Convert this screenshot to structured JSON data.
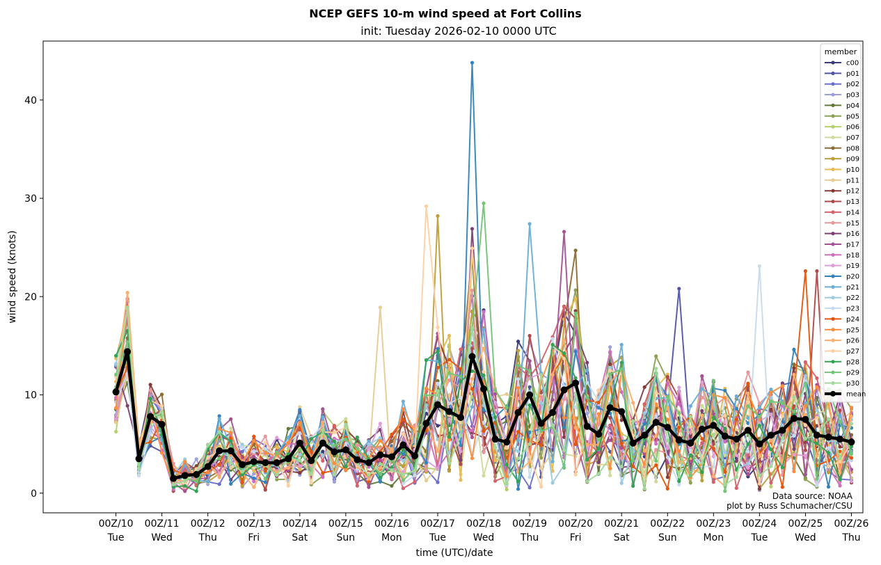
{
  "chart_data": {
    "type": "line",
    "title": "NCEP GEFS 10-m wind speed at Fort Collins",
    "subtitle": "init: Tuesday 2026-02-10 0000 UTC",
    "xlabel": "time (UTC)/date",
    "ylabel": "wind speed (knots)",
    "x_unit": "hours since 00Z/10",
    "xlim": [
      -38,
      390
    ],
    "ylim": [
      -2,
      46
    ],
    "yticks": [
      0,
      10,
      20,
      30,
      40
    ],
    "xticks": [
      {
        "line1": "00Z/10",
        "line2": "Tue"
      },
      {
        "line1": "00Z/11",
        "line2": "Wed"
      },
      {
        "line1": "00Z/12",
        "line2": "Thu"
      },
      {
        "line1": "00Z/13",
        "line2": "Fri"
      },
      {
        "line1": "00Z/14",
        "line2": "Sat"
      },
      {
        "line1": "00Z/15",
        "line2": "Sun"
      },
      {
        "line1": "00Z/16",
        "line2": "Mon"
      },
      {
        "line1": "00Z/17",
        "line2": "Tue"
      },
      {
        "line1": "00Z/18",
        "line2": "Wed"
      },
      {
        "line1": "00Z/19",
        "line2": "Thu"
      },
      {
        "line1": "00Z/20",
        "line2": "Fri"
      },
      {
        "line1": "00Z/21",
        "line2": "Sat"
      },
      {
        "line1": "00Z/22",
        "line2": "Sun"
      },
      {
        "line1": "00Z/23",
        "line2": "Mon"
      },
      {
        "line1": "00Z/24",
        "line2": "Tue"
      },
      {
        "line1": "00Z/25",
        "line2": "Wed"
      },
      {
        "line1": "00Z/26",
        "line2": "Thu"
      }
    ],
    "legend_title": "member",
    "legend_placement": "upper right",
    "grid": false,
    "members": [
      {
        "name": "c00",
        "color": "#393b79"
      },
      {
        "name": "p01",
        "color": "#5254a3"
      },
      {
        "name": "p02",
        "color": "#6b6ecf"
      },
      {
        "name": "p03",
        "color": "#9c9ede"
      },
      {
        "name": "p04",
        "color": "#637939"
      },
      {
        "name": "p05",
        "color": "#8ca252"
      },
      {
        "name": "p06",
        "color": "#b5cf6b"
      },
      {
        "name": "p07",
        "color": "#cedb9c"
      },
      {
        "name": "p08",
        "color": "#8c6d31"
      },
      {
        "name": "p09",
        "color": "#bd9e39"
      },
      {
        "name": "p10",
        "color": "#e7ba52"
      },
      {
        "name": "p11",
        "color": "#e7cb94"
      },
      {
        "name": "p12",
        "color": "#843c39"
      },
      {
        "name": "p13",
        "color": "#ad494a"
      },
      {
        "name": "p14",
        "color": "#d6616b"
      },
      {
        "name": "p15",
        "color": "#e7969c"
      },
      {
        "name": "p16",
        "color": "#7b4173"
      },
      {
        "name": "p17",
        "color": "#a55194"
      },
      {
        "name": "p18",
        "color": "#ce6dbd"
      },
      {
        "name": "p19",
        "color": "#de9ed6"
      },
      {
        "name": "p20",
        "color": "#3182bd"
      },
      {
        "name": "p21",
        "color": "#6baed6"
      },
      {
        "name": "p22",
        "color": "#9ecae1"
      },
      {
        "name": "p23",
        "color": "#c6dbef"
      },
      {
        "name": "p24",
        "color": "#e6550d"
      },
      {
        "name": "p25",
        "color": "#fd8d3c"
      },
      {
        "name": "p26",
        "color": "#fdae6b"
      },
      {
        "name": "p27",
        "color": "#fdd0a2"
      },
      {
        "name": "p28",
        "color": "#31a354"
      },
      {
        "name": "p29",
        "color": "#74c476"
      },
      {
        "name": "p30",
        "color": "#a1d99b"
      }
    ],
    "mean": {
      "name": "mean",
      "color": "#000000",
      "x": [
        0,
        6,
        12,
        18,
        24,
        30,
        36,
        42,
        48,
        54,
        60,
        66,
        72,
        78,
        84,
        90,
        96,
        102,
        108,
        114,
        120,
        126,
        132,
        138,
        144,
        150,
        156,
        162,
        168,
        174,
        180,
        186,
        192,
        198,
        204,
        210,
        216,
        222,
        228,
        234,
        240,
        246,
        252,
        258,
        264,
        270,
        276,
        282,
        288,
        294,
        300,
        306,
        312,
        318,
        324,
        330,
        336,
        342,
        348,
        354,
        360,
        366,
        372,
        378,
        384
      ],
      "y": [
        10.3,
        14.4,
        3.5,
        7.8,
        7.0,
        1.5,
        1.8,
        1.9,
        2.7,
        4.3,
        4.3,
        2.9,
        3.2,
        3.1,
        3.1,
        3.5,
        5.1,
        3.3,
        5.1,
        4.2,
        4.4,
        3.4,
        3.1,
        3.9,
        3.7,
        4.9,
        3.8,
        7.1,
        9.0,
        8.3,
        7.7,
        13.9,
        10.6,
        5.5,
        5.2,
        8.2,
        10.0,
        7.1,
        8.2,
        10.5,
        11.2,
        6.8,
        6.0,
        8.7,
        8.3,
        5.1,
        5.9,
        7.2,
        6.7,
        5.4,
        5.1,
        6.5,
        6.9,
        5.8,
        5.5,
        6.4,
        5.0,
        5.9,
        6.4,
        7.6,
        7.5,
        5.9,
        5.7,
        5.5,
        5.2
      ]
    },
    "notable_member_values": [
      {
        "member": "p20",
        "x": 186,
        "y": 43.8
      },
      {
        "member": "p29",
        "x": 192,
        "y": 29.5
      },
      {
        "member": "p27",
        "x": 162,
        "y": 29.2
      },
      {
        "member": "p09",
        "x": 168,
        "y": 28.2
      },
      {
        "member": "p21",
        "x": 216,
        "y": 27.4
      },
      {
        "member": "p17",
        "x": 234,
        "y": 26.6
      },
      {
        "member": "p16",
        "x": 186,
        "y": 26.9
      },
      {
        "member": "p08",
        "x": 240,
        "y": 24.7
      },
      {
        "member": "p23",
        "x": 336,
        "y": 23.1
      },
      {
        "member": "p13",
        "x": 366,
        "y": 22.6
      },
      {
        "member": "p24",
        "x": 360,
        "y": 22.6
      },
      {
        "member": "p01",
        "x": 294,
        "y": 20.8
      },
      {
        "member": "p26",
        "x": 6,
        "y": 20.4
      },
      {
        "member": "p11",
        "x": 138,
        "y": 18.9
      },
      {
        "member": "p03",
        "x": 6,
        "y": 19.8
      }
    ]
  },
  "credit": {
    "line1": "Data source: NOAA",
    "line2": "plot by Russ Schumacher/CSU"
  }
}
